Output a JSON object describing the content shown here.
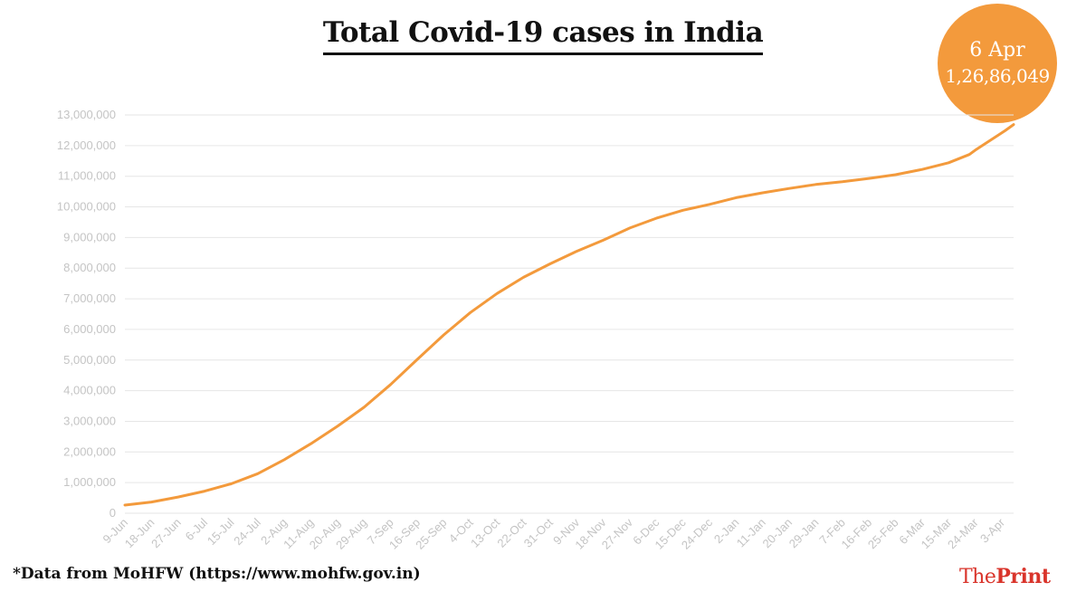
{
  "title": "Total Covid-19 cases in India",
  "badge": {
    "date": "6 Apr",
    "value": "1,26,86,049"
  },
  "footnote": "*Data from MoHFW (https://www.mohfw.gov.in)",
  "logo": {
    "part1": "The",
    "part2": "Print"
  },
  "colors": {
    "line": "#f39a3c",
    "badge": "#f39a3c",
    "logo": "#d9342b",
    "grid": "#e6e6e6",
    "ticks": "#c4c4c4"
  },
  "chart_data": {
    "type": "line",
    "title": "Total Covid-19 cases in India",
    "xlabel": "",
    "ylabel": "",
    "ylim": [
      0,
      13000000
    ],
    "grid": true,
    "y_ticks": [
      "0",
      "1,000,000",
      "2,000,000",
      "3,000,000",
      "4,000,000",
      "5,000,000",
      "6,000,000",
      "7,000,000",
      "8,000,000",
      "9,000,000",
      "10,000,000",
      "11,000,000",
      "12,000,000",
      "13,000,000"
    ],
    "x_ticks": [
      "9-Jun",
      "18-Jun",
      "27-Jun",
      "6-Jul",
      "15-Jul",
      "24-Jul",
      "2-Aug",
      "11-Aug",
      "20-Aug",
      "29-Aug",
      "7-Sep",
      "16-Sep",
      "25-Sep",
      "4-Oct",
      "13-Oct",
      "22-Oct",
      "31-Oct",
      "9-Nov",
      "18-Nov",
      "27-Nov",
      "6-Dec",
      "15-Dec",
      "24-Dec",
      "2-Jan",
      "11-Jan",
      "20-Jan",
      "29-Jan",
      "7-Feb",
      "16-Feb",
      "25-Feb",
      "6-Mar",
      "15-Mar",
      "24-Mar",
      "3-Apr"
    ],
    "series": [
      {
        "x": [
          "2020-06-09",
          "2020-06-18",
          "2020-06-27",
          "2020-07-06",
          "2020-07-15",
          "2020-07-24",
          "2020-08-02",
          "2020-08-11",
          "2020-08-20",
          "2020-08-29",
          "2020-09-07",
          "2020-09-16",
          "2020-09-25",
          "2020-10-04",
          "2020-10-13",
          "2020-10-22",
          "2020-10-31",
          "2020-11-09",
          "2020-11-18",
          "2020-11-27",
          "2020-12-06",
          "2020-12-15",
          "2020-12-24",
          "2021-01-02",
          "2021-01-11",
          "2021-01-20",
          "2021-01-29",
          "2021-02-07",
          "2021-02-16",
          "2021-02-25",
          "2021-03-06",
          "2021-03-15",
          "2021-03-22",
          "2021-03-24",
          "2021-04-03",
          "2021-04-06"
        ],
        "values": [
          267000,
          367000,
          528000,
          720000,
          960000,
          1290000,
          1750000,
          2270000,
          2840000,
          3460000,
          4200000,
          5020000,
          5820000,
          6550000,
          7170000,
          7700000,
          8140000,
          8550000,
          8910000,
          9310000,
          9630000,
          9890000,
          10080000,
          10300000,
          10460000,
          10600000,
          10730000,
          10820000,
          10930000,
          11050000,
          11220000,
          11440000,
          11710000,
          11850000,
          12480000,
          12686049
        ]
      }
    ]
  }
}
